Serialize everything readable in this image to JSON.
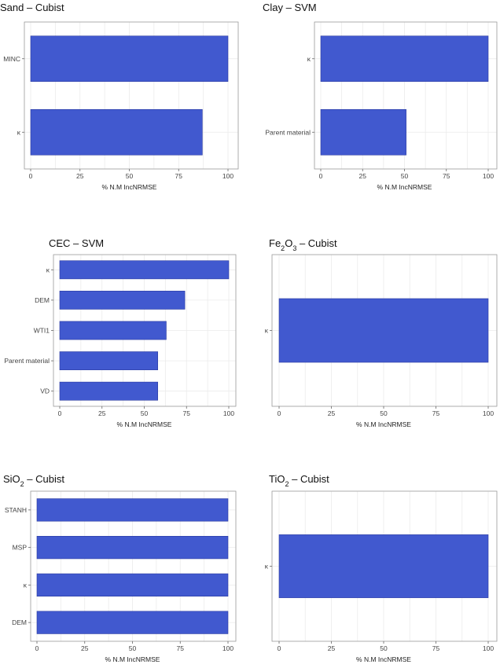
{
  "colors": {
    "bar": "#4159cf",
    "bar_border": "#2a3aa0",
    "grid": "#ebebeb",
    "frame": "#9a9a9a"
  },
  "chart_data": [
    {
      "type": "bar",
      "orientation": "horizontal",
      "title": "Sand – Cubist",
      "title_parts": [
        {
          "t": "Sand – Cubist"
        }
      ],
      "categories": [
        "MINC",
        "κ"
      ],
      "values": [
        100,
        87
      ],
      "xlabel": "% N.M IncNRMSE",
      "xlim": [
        0,
        100
      ],
      "xticks": [
        0,
        25,
        50,
        75,
        100
      ],
      "grid": true
    },
    {
      "type": "bar",
      "orientation": "horizontal",
      "title": "Clay – SVM",
      "title_parts": [
        {
          "t": "Clay – SVM"
        }
      ],
      "categories": [
        "κ",
        "Parent material"
      ],
      "values": [
        100,
        51
      ],
      "xlabel": "% N.M IncNRMSE",
      "xlim": [
        0,
        100
      ],
      "xticks": [
        0,
        25,
        50,
        75,
        100
      ],
      "grid": true
    },
    {
      "type": "bar",
      "orientation": "horizontal",
      "title": "CEC – SVM",
      "title_parts": [
        {
          "t": "CEC – SVM"
        }
      ],
      "categories": [
        "κ",
        "DEM",
        "WTI1",
        "Parent material",
        "VD"
      ],
      "values": [
        100,
        74,
        63,
        58,
        58
      ],
      "xlabel": "% N.M IncNRMSE",
      "xlim": [
        0,
        100
      ],
      "xticks": [
        0,
        25,
        50,
        75,
        100
      ],
      "grid": true
    },
    {
      "type": "bar",
      "orientation": "horizontal",
      "title": "Fe₂O₃ – Cubist",
      "title_parts": [
        {
          "t": "Fe"
        },
        {
          "t": "2",
          "sub": true
        },
        {
          "t": "O"
        },
        {
          "t": "3",
          "sub": true
        },
        {
          "t": " – Cubist"
        }
      ],
      "categories": [
        "κ"
      ],
      "values": [
        100
      ],
      "xlabel": "% N.M IncNRMSE",
      "xlim": [
        0,
        100
      ],
      "xticks": [
        0,
        25,
        50,
        75,
        100
      ],
      "grid": true
    },
    {
      "type": "bar",
      "orientation": "horizontal",
      "title": "SiO₂ – Cubist",
      "title_parts": [
        {
          "t": "SiO"
        },
        {
          "t": "2",
          "sub": true
        },
        {
          "t": " – Cubist"
        }
      ],
      "categories": [
        "STANH",
        "MSP",
        "κ",
        "DEM"
      ],
      "values": [
        100,
        100,
        100,
        100
      ],
      "xlabel": "% N.M IncNRMSE",
      "xlim": [
        0,
        100
      ],
      "xticks": [
        0,
        25,
        50,
        75,
        100
      ],
      "grid": true
    },
    {
      "type": "bar",
      "orientation": "horizontal",
      "title": "TiO₂ – Cubist",
      "title_parts": [
        {
          "t": "TiO"
        },
        {
          "t": "2",
          "sub": true
        },
        {
          "t": " – Cubist"
        }
      ],
      "categories": [
        "κ"
      ],
      "values": [
        100
      ],
      "xlabel": "% N.M IncNRMSE",
      "xlim": [
        0,
        100
      ],
      "xticks": [
        0,
        25,
        50,
        75,
        100
      ],
      "grid": true
    }
  ]
}
